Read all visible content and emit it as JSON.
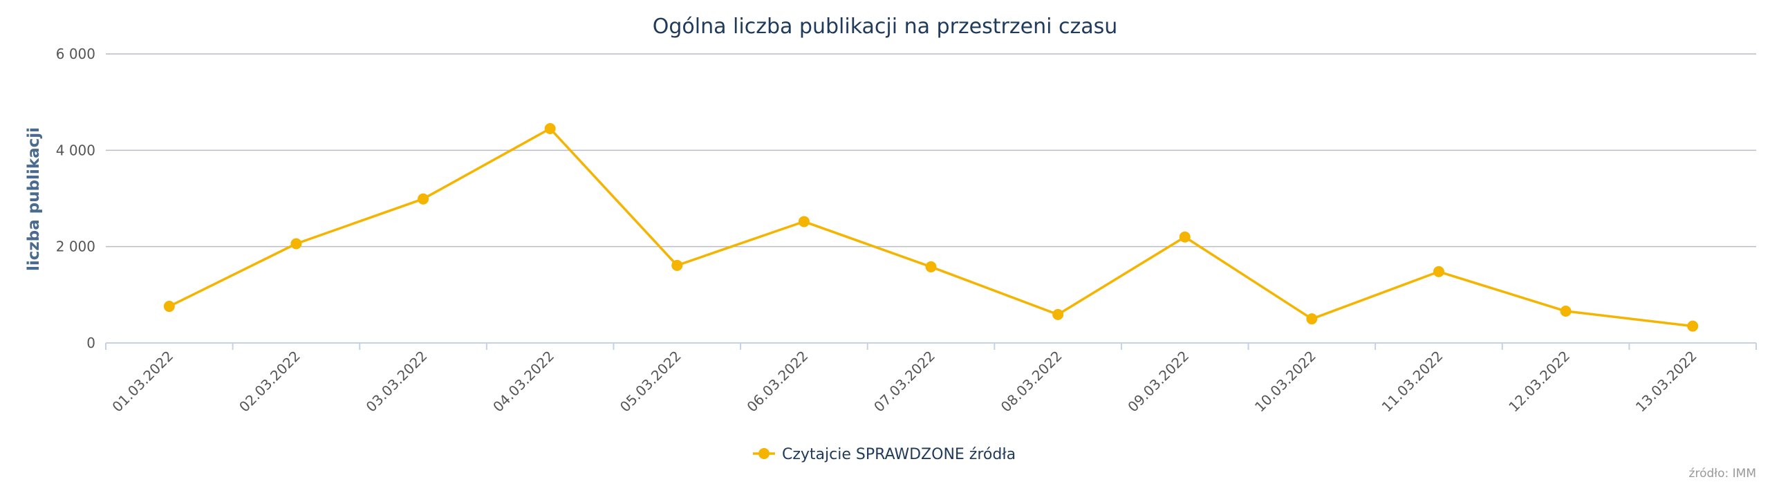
{
  "chart_data": {
    "type": "line",
    "title": "Ogólna liczba publikacji na przestrzeni czasu",
    "ylabel": "liczba publikacji",
    "xlabel": "",
    "ylim": [
      0,
      6000
    ],
    "yticks": [
      0,
      2000,
      4000,
      6000
    ],
    "ytick_labels": [
      "0",
      "2 000",
      "4 000",
      "6 000"
    ],
    "categories": [
      "01.03.2022",
      "02.03.2022",
      "03.03.2022",
      "04.03.2022",
      "05.03.2022",
      "06.03.2022",
      "07.03.2022",
      "08.03.2022",
      "09.03.2022",
      "10.03.2022",
      "11.03.2022",
      "12.03.2022",
      "13.03.2022"
    ],
    "series": [
      {
        "name": "Czytajcie SPRAWDZONE źródła",
        "color": "#f5b400",
        "values": [
          760,
          2060,
          2990,
          4450,
          1610,
          2520,
          1580,
          590,
          2200,
          500,
          1480,
          660,
          350
        ]
      }
    ],
    "grid": true,
    "legend_position": "bottom-center",
    "credits": "źródło: IMM"
  }
}
